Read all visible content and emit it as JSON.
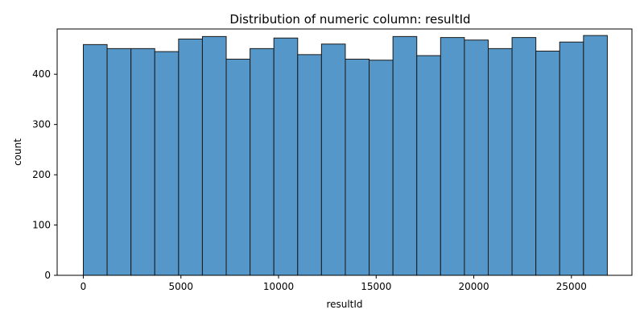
{
  "chart_data": {
    "type": "bar",
    "title": "Distribution of numeric column: resultId",
    "xlabel": "resultId",
    "ylabel": "count",
    "xlim": [
      -1340,
      28100
    ],
    "ylim": [
      0,
      490
    ],
    "grid": false,
    "bar_color": "#5497c8",
    "edge_color": "#1a1a1a",
    "x_ticks": [
      0,
      5000,
      10000,
      15000,
      20000,
      25000
    ],
    "y_ticks": [
      0,
      100,
      200,
      300,
      400
    ],
    "bins": [
      {
        "x0": 0,
        "x1": 1220,
        "count": 459
      },
      {
        "x0": 1220,
        "x1": 2440,
        "count": 451
      },
      {
        "x0": 2440,
        "x1": 3660,
        "count": 451
      },
      {
        "x0": 3660,
        "x1": 4880,
        "count": 445
      },
      {
        "x0": 4880,
        "x1": 6100,
        "count": 470
      },
      {
        "x0": 6100,
        "x1": 7320,
        "count": 475
      },
      {
        "x0": 7320,
        "x1": 8540,
        "count": 430
      },
      {
        "x0": 8540,
        "x1": 9760,
        "count": 451
      },
      {
        "x0": 9760,
        "x1": 10980,
        "count": 472
      },
      {
        "x0": 10980,
        "x1": 12200,
        "count": 439
      },
      {
        "x0": 12200,
        "x1": 13420,
        "count": 460
      },
      {
        "x0": 13420,
        "x1": 14640,
        "count": 430
      },
      {
        "x0": 14640,
        "x1": 15860,
        "count": 428
      },
      {
        "x0": 15860,
        "x1": 17080,
        "count": 475
      },
      {
        "x0": 17080,
        "x1": 18300,
        "count": 437
      },
      {
        "x0": 18300,
        "x1": 19520,
        "count": 473
      },
      {
        "x0": 19520,
        "x1": 20740,
        "count": 468
      },
      {
        "x0": 20740,
        "x1": 21960,
        "count": 451
      },
      {
        "x0": 21960,
        "x1": 23180,
        "count": 473
      },
      {
        "x0": 23180,
        "x1": 24400,
        "count": 446
      },
      {
        "x0": 24400,
        "x1": 25620,
        "count": 464
      },
      {
        "x0": 25620,
        "x1": 26840,
        "count": 477
      }
    ]
  }
}
